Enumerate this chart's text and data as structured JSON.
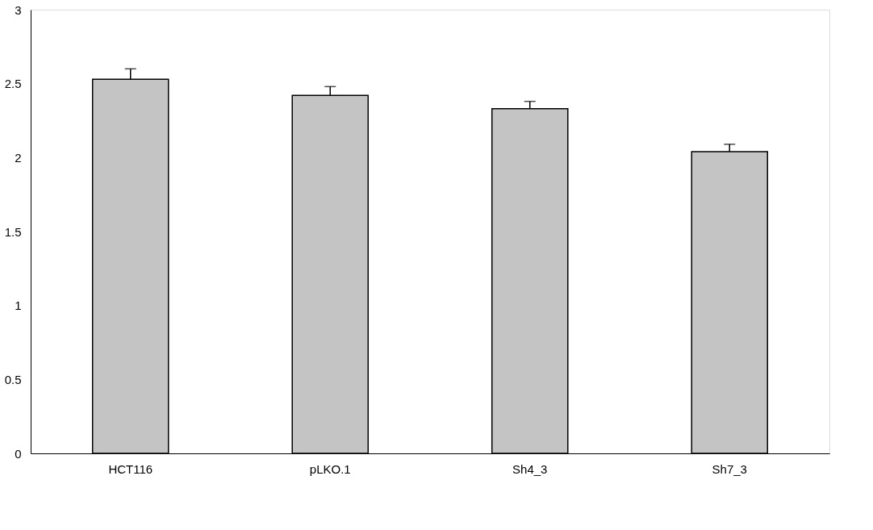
{
  "chart_data": {
    "type": "bar",
    "categories": [
      "HCT116",
      "pLKO.1",
      "Sh4_3",
      "Sh7_3"
    ],
    "values": [
      2.53,
      2.42,
      2.33,
      2.04
    ],
    "errors": [
      [
        2.53,
        2.6
      ],
      [
        2.42,
        2.48
      ],
      [
        2.33,
        2.38
      ],
      [
        2.04,
        2.09
      ]
    ],
    "color": "#c4c4c4",
    "ylim": [
      0,
      3
    ],
    "yticks": [
      0,
      0.5,
      1,
      1.5,
      2,
      2.5,
      3
    ],
    "grid": false
  }
}
